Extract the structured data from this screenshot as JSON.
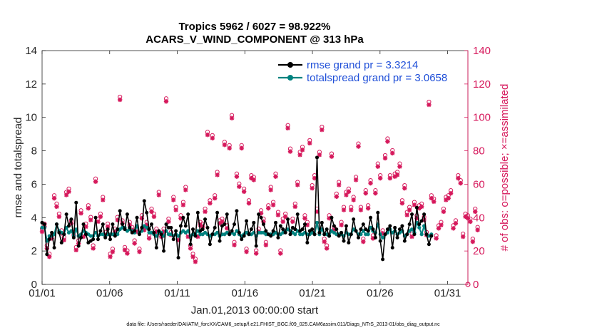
{
  "chart_data": {
    "type": "line",
    "title_line1": "Tropics 5962 / 6027 = 98.922%",
    "title_line2": "ACARS_V_WIND_COMPONENT @ 313 hPa",
    "xlabel": "Jan.01,2013 00:00:00 start",
    "ylabel": "rmse and totalspread",
    "y2label": "# of obs: o=possible; ×=assimilated",
    "xlim": [
      0,
      31.5
    ],
    "ylim": [
      0,
      14
    ],
    "y2lim": [
      0,
      140
    ],
    "x_tick_values": [
      0,
      5,
      10,
      15,
      20,
      25,
      30
    ],
    "x_tick_labels": [
      "01/01",
      "01/06",
      "01/11",
      "01/16",
      "01/21",
      "01/26",
      "01/31"
    ],
    "y_ticks": [
      0,
      2,
      4,
      6,
      8,
      10,
      12,
      14
    ],
    "y2_ticks": [
      0,
      20,
      40,
      60,
      80,
      100,
      120,
      140
    ],
    "footnote": "data file: /Users/raeder/DAI/ATM_forcXX/CAM6_setup/f.e21.FHIST_BGC.f09_025.CAM6assim.011/Diags_NTrS_2013-01/obs_diag_output.nc",
    "colors": {
      "rmse": "#000000",
      "spread": "#00827f",
      "obs": "#d6195c",
      "legend_text": "#1f4fd8"
    },
    "series": [
      {
        "name": "rmse grand pr = 3.3214",
        "values": [
          3.7,
          3.6,
          1.8,
          2.7,
          3.1,
          2.2,
          3.6,
          3.1,
          2.5,
          3.0,
          4.2,
          3.5,
          3.9,
          2.8,
          4.9,
          2.3,
          2.8,
          3.6,
          3.0,
          2.5,
          2.6,
          2.7,
          4.0,
          2.7,
          3.2,
          3.6,
          2.8,
          3.3,
          2.7,
          3.6,
          2.9,
          3.3,
          4.4,
          3.6,
          3.3,
          4.2,
          3.4,
          3.1,
          3.2,
          4.0,
          3.0,
          3.4,
          5.0,
          4.3,
          3.3,
          3.6,
          3.1,
          2.2,
          3.2,
          3.0,
          2.0,
          3.6,
          3.4,
          3.4,
          2.7,
          3.2,
          1.6,
          3.5,
          4.0,
          3.5,
          4.2,
          2.4,
          3.3,
          2.9,
          4.3,
          3.2,
          3.3,
          3.9,
          3.4,
          2.4,
          3.0,
          3.4,
          4.3,
          2.6,
          3.5,
          3.6,
          4.2,
          3.0,
          3.2,
          3.6,
          4.4,
          3.1,
          2.7,
          2.9,
          3.8,
          3.0,
          3.3,
          3.7,
          2.3,
          4.2,
          4.0,
          3.6,
          3.2,
          3.0,
          2.9,
          3.2,
          3.7,
          2.8,
          3.5,
          3.3,
          3.1,
          3.9,
          3.0,
          3.4,
          3.3,
          4.2,
          3.2,
          3.3,
          3.6,
          2.5,
          3.2,
          3.3,
          3.0,
          7.6,
          3.1,
          3.7,
          3.0,
          3.3,
          2.9,
          4.0,
          3.5,
          3.3,
          2.9,
          3.1,
          2.6,
          3.5,
          2.5,
          3.0,
          3.9,
          3.2,
          2.8,
          3.3,
          3.6,
          3.3,
          3.2,
          4.0,
          3.3,
          2.8,
          4.3,
          2.6,
          1.5,
          3.0,
          3.3,
          3.5,
          2.2,
          3.4,
          2.8,
          3.3,
          3.5,
          2.6,
          3.0,
          3.6,
          4.2,
          3.0,
          4.6,
          3.6,
          3.8,
          4.2,
          3.0,
          2.4,
          2.9
        ]
      },
      {
        "name": "totalspread grand pr = 3.0658",
        "values": [
          3.4,
          3.4,
          2.6,
          2.9,
          2.9,
          3.0,
          3.6,
          3.2,
          3.1,
          3.0,
          3.4,
          3.1,
          3.2,
          2.9,
          3.3,
          2.9,
          3.0,
          3.2,
          3.1,
          3.0,
          2.9,
          2.9,
          3.1,
          2.9,
          3.0,
          3.0,
          2.9,
          3.0,
          3.0,
          3.0,
          3.0,
          3.0,
          3.3,
          3.4,
          3.4,
          3.2,
          3.3,
          3.2,
          3.1,
          3.5,
          3.1,
          3.2,
          3.5,
          3.4,
          3.1,
          3.1,
          3.0,
          2.9,
          3.1,
          3.1,
          2.9,
          3.2,
          3.0,
          3.0,
          2.9,
          3.0,
          2.9,
          3.1,
          3.2,
          3.1,
          3.2,
          2.9,
          3.0,
          3.0,
          3.2,
          3.0,
          3.0,
          3.1,
          3.0,
          2.9,
          3.0,
          3.0,
          3.1,
          2.9,
          3.0,
          3.0,
          3.1,
          3.0,
          3.1,
          3.0,
          3.2,
          3.0,
          2.9,
          3.0,
          3.1,
          3.0,
          3.0,
          3.1,
          2.9,
          3.1,
          3.1,
          3.1,
          3.0,
          3.0,
          3.0,
          3.0,
          3.1,
          3.0,
          3.0,
          3.1,
          3.2,
          3.3,
          3.2,
          3.1,
          3.0,
          3.2,
          3.0,
          3.0,
          3.1,
          3.0,
          3.0,
          3.1,
          3.0,
          3.7,
          3.0,
          3.3,
          3.0,
          3.0,
          2.9,
          3.2,
          3.1,
          3.0,
          3.0,
          3.0,
          2.9,
          3.1,
          3.0,
          3.0,
          3.3,
          3.2,
          3.0,
          3.0,
          3.2,
          3.0,
          3.0,
          3.4,
          3.2,
          3.1,
          3.6,
          3.0,
          2.8,
          3.0,
          3.1,
          3.3,
          3.1,
          3.2,
          3.0,
          3.1,
          3.2,
          2.9,
          3.0,
          3.2,
          3.3,
          3.1,
          3.7,
          3.4,
          3.0,
          3.5,
          3.0,
          2.9,
          3.0
        ]
      }
    ],
    "obs_possible": [
      32,
      35,
      22,
      17,
      28,
      52,
      47,
      41,
      31,
      27,
      54,
      56,
      37,
      30,
      21,
      25,
      43,
      29,
      35,
      46,
      39,
      22,
      62,
      38,
      41,
      51,
      30,
      35,
      17,
      20,
      32,
      39,
      111,
      37,
      21,
      19,
      36,
      33,
      25,
      32,
      20,
      40,
      33,
      36,
      28,
      44,
      41,
      32,
      54,
      29,
      32,
      110,
      38,
      30,
      51,
      45,
      27,
      40,
      48,
      57,
      29,
      22,
      17,
      14,
      29,
      36,
      35,
      44,
      90,
      49,
      88,
      52,
      66,
      37,
      38,
      84,
      34,
      82,
      100,
      24,
      65,
      59,
      82,
      56,
      20,
      49,
      64,
      63,
      19,
      32,
      43,
      38,
      24,
      46,
      57,
      48,
      65,
      42,
      19,
      38,
      41,
      94,
      80,
      38,
      47,
      60,
      78,
      81,
      40,
      36,
      85,
      58,
      64,
      44,
      78,
      93,
      26,
      22,
      40,
      77,
      33,
      53,
      60,
      36,
      45,
      54,
      56,
      45,
      51,
      63,
      83,
      45,
      26,
      55,
      46,
      61,
      28,
      55,
      71,
      64,
      31,
      76,
      86,
      64,
      79,
      65,
      66,
      71,
      49,
      58,
      42,
      45,
      29,
      48,
      40,
      46,
      47,
      39,
      30,
      108,
      52,
      50,
      28,
      34,
      36,
      44,
      51,
      52,
      55,
      34,
      37,
      64,
      61,
      29,
      41,
      40,
      38,
      26,
      44,
      33
    ]
  }
}
